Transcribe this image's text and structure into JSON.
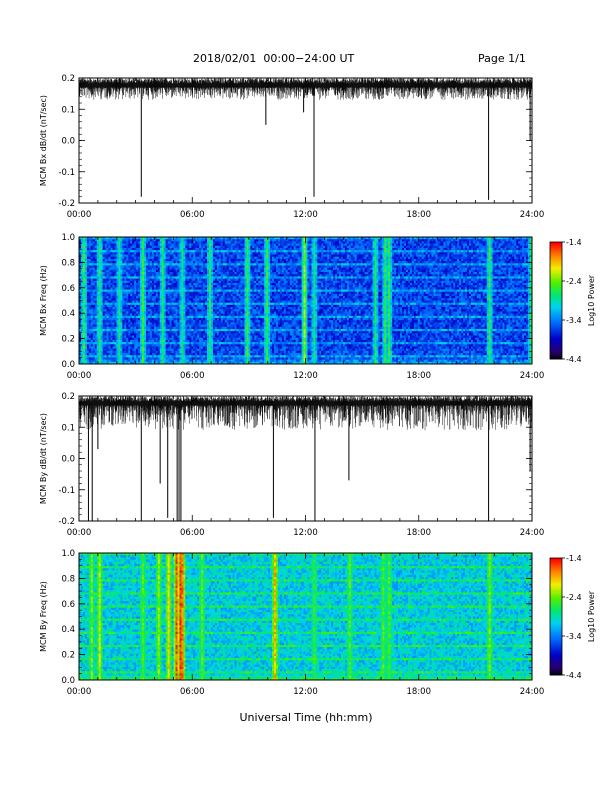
{
  "header": {
    "title": "2018/02/01  00:00−24:00 UT",
    "page": "Page 1/1"
  },
  "x_axis_title": "Universal Time (hh:mm)",
  "chart_data": [
    {
      "type": "line",
      "title": "",
      "ylabel": "MCM Bx dB/dt (nT/sec)",
      "xlabel": "",
      "x_ticks": [
        "00:00",
        "06:00",
        "12:00",
        "18:00",
        "24:00"
      ],
      "y_ticks": [
        "0.2",
        "0.1",
        "0.0",
        "-0.1",
        "-0.2"
      ],
      "xlim": [
        0,
        24
      ],
      "ylim": [
        -0.2,
        0.2
      ],
      "baseline": 0.17,
      "noise_band": [
        0.13,
        0.2
      ],
      "spikes": [
        {
          "x": 3.3,
          "y": -0.18
        },
        {
          "x": 9.9,
          "y": 0.05
        },
        {
          "x": 11.9,
          "y": 0.09
        },
        {
          "x": 12.45,
          "y": -0.18
        },
        {
          "x": 21.7,
          "y": -0.19
        },
        {
          "x": 23.9,
          "y": 0.0
        }
      ]
    },
    {
      "type": "heatmap",
      "title": "",
      "ylabel": "MCM Bx Freq (Hz)",
      "xlabel": "",
      "x_ticks": [
        "00:00",
        "06:00",
        "12:00",
        "18:00",
        "24:00"
      ],
      "y_ticks": [
        "1.0",
        "0.8",
        "0.6",
        "0.4",
        "0.2",
        "0.0"
      ],
      "xlim": [
        0,
        24
      ],
      "ylim": [
        0,
        1.0
      ],
      "colorbar_label": "Log10 Power",
      "colorbar_ticks": [
        "-1.4",
        "-2.4",
        "-3.4",
        "-4.4"
      ],
      "color_range": [
        -4.4,
        -1.4
      ],
      "background_level": -3.6,
      "bright_columns": [
        {
          "x": 0.2,
          "level": -2.6
        },
        {
          "x": 1.0,
          "level": -2.7
        },
        {
          "x": 2.1,
          "level": -2.8
        },
        {
          "x": 3.3,
          "level": -2.6
        },
        {
          "x": 4.4,
          "level": -2.7
        },
        {
          "x": 5.4,
          "level": -2.8
        },
        {
          "x": 6.9,
          "level": -2.7
        },
        {
          "x": 8.9,
          "level": -2.6
        },
        {
          "x": 9.9,
          "level": -2.6
        },
        {
          "x": 11.9,
          "level": -2.3
        },
        {
          "x": 12.4,
          "level": -2.8
        },
        {
          "x": 15.6,
          "level": -2.7
        },
        {
          "x": 16.2,
          "level": -2.6
        },
        {
          "x": 16.4,
          "level": -2.6
        },
        {
          "x": 21.7,
          "level": -2.6
        },
        {
          "x": 23.9,
          "level": -2.7
        }
      ]
    },
    {
      "type": "line",
      "title": "",
      "ylabel": "MCM By dB/dt (nT/sec)",
      "xlabel": "",
      "x_ticks": [
        "00:00",
        "06:00",
        "12:00",
        "18:00",
        "24:00"
      ],
      "y_ticks": [
        "0.2",
        "0.1",
        "0.0",
        "-0.1",
        "-0.2"
      ],
      "xlim": [
        0,
        24
      ],
      "ylim": [
        -0.2,
        0.2
      ],
      "baseline": 0.17,
      "noise_band": [
        0.09,
        0.2
      ],
      "spikes": [
        {
          "x": 0.5,
          "y": -0.2
        },
        {
          "x": 0.7,
          "y": -0.2
        },
        {
          "x": 1.0,
          "y": 0.03
        },
        {
          "x": 3.3,
          "y": -0.2
        },
        {
          "x": 4.3,
          "y": -0.08
        },
        {
          "x": 4.7,
          "y": -0.19
        },
        {
          "x": 5.2,
          "y": -0.2
        },
        {
          "x": 5.3,
          "y": -0.2
        },
        {
          "x": 5.4,
          "y": -0.2
        },
        {
          "x": 10.3,
          "y": -0.19
        },
        {
          "x": 12.5,
          "y": -0.2
        },
        {
          "x": 14.3,
          "y": -0.07
        },
        {
          "x": 21.7,
          "y": -0.2
        },
        {
          "x": 23.9,
          "y": -0.04
        }
      ]
    },
    {
      "type": "heatmap",
      "title": "",
      "ylabel": "MCM By Freq (Hz)",
      "xlabel": "",
      "x_ticks": [
        "00:00",
        "06:00",
        "12:00",
        "18:00",
        "24:00"
      ],
      "y_ticks": [
        "1.0",
        "0.8",
        "0.6",
        "0.4",
        "0.2",
        "0.0"
      ],
      "xlim": [
        0,
        24
      ],
      "ylim": [
        0,
        1.0
      ],
      "colorbar_label": "Log10 Power",
      "colorbar_ticks": [
        "-1.4",
        "-2.4",
        "-3.4",
        "-4.4"
      ],
      "color_range": [
        -4.4,
        -1.4
      ],
      "background_level": -3.05,
      "bright_columns": [
        {
          "x": 0.6,
          "level": -2.4
        },
        {
          "x": 1.0,
          "level": -2.2
        },
        {
          "x": 3.3,
          "level": -2.5
        },
        {
          "x": 4.2,
          "level": -2.3
        },
        {
          "x": 4.7,
          "level": -2.0
        },
        {
          "x": 5.15,
          "level": -1.6
        },
        {
          "x": 5.3,
          "level": -1.5
        },
        {
          "x": 5.45,
          "level": -1.7
        },
        {
          "x": 6.5,
          "level": -2.5
        },
        {
          "x": 10.3,
          "level": -1.9
        },
        {
          "x": 12.4,
          "level": -2.6
        },
        {
          "x": 14.3,
          "level": -2.5
        },
        {
          "x": 16.1,
          "level": -2.5
        },
        {
          "x": 16.4,
          "level": -2.5
        },
        {
          "x": 21.7,
          "level": -2.4
        }
      ]
    }
  ]
}
